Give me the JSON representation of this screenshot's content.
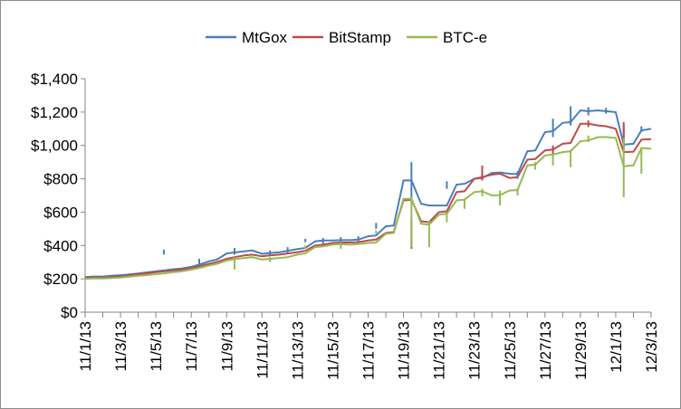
{
  "chart_data": {
    "type": "line",
    "title": "",
    "xlabel": "",
    "ylabel": "",
    "ylim": [
      0,
      1400
    ],
    "y_ticks": [
      "$0",
      "$200",
      "$400",
      "$600",
      "$800",
      "$1,000",
      "$1,200",
      "$1,400"
    ],
    "y_tick_values": [
      0,
      200,
      400,
      600,
      800,
      1000,
      1200,
      1400
    ],
    "x_ticks": [
      "11/1/13",
      "11/3/13",
      "11/5/13",
      "11/7/13",
      "11/9/13",
      "11/11/13",
      "11/13/13",
      "11/15/13",
      "11/17/13",
      "11/19/13",
      "11/21/13",
      "11/23/13",
      "11/25/13",
      "11/27/13",
      "11/29/13",
      "12/1/13",
      "12/3/13"
    ],
    "x_tick_days": [
      0,
      2,
      4,
      6,
      8,
      10,
      12,
      14,
      16,
      18,
      20,
      22,
      24,
      26,
      28,
      30,
      32
    ],
    "x_range": [
      0,
      32
    ],
    "legend_position": "top-center",
    "series": [
      {
        "name": "MtGox",
        "color": "#4a7ebb",
        "x": [
          0,
          0.45,
          1,
          1.45,
          2,
          2.45,
          3,
          3.45,
          4,
          4.45,
          5,
          5.45,
          6,
          6.45,
          7,
          7.45,
          8,
          8.45,
          9,
          9.45,
          10,
          10.45,
          11,
          11.45,
          12,
          12.45,
          13,
          13.45,
          14,
          14.45,
          15,
          15.45,
          16,
          16.45,
          17,
          17.45,
          18,
          18.45,
          19,
          19.45,
          20,
          20.45,
          21,
          21.45,
          22,
          22.45,
          23,
          23.45,
          24,
          24.45,
          25,
          25.45,
          26,
          26.45,
          27,
          27.45,
          28,
          28.45,
          29,
          29.45,
          30,
          30.45,
          31,
          31.45,
          32
        ],
        "values": [
          210,
          214,
          214,
          218,
          222,
          226,
          232,
          238,
          245,
          250,
          258,
          262,
          272,
          285,
          305,
          315,
          352,
          358,
          365,
          370,
          350,
          355,
          360,
          368,
          378,
          385,
          425,
          430,
          430,
          432,
          432,
          435,
          455,
          460,
          515,
          520,
          790,
          790,
          650,
          640,
          640,
          640,
          765,
          770,
          800,
          805,
          835,
          838,
          830,
          828,
          965,
          970,
          1080,
          1085,
          1135,
          1140,
          1210,
          1205,
          1210,
          1205,
          1200,
          1005,
          1010,
          1090,
          1100
        ]
      },
      {
        "name": "BitStamp",
        "color": "#be4b48",
        "x": [
          0,
          0.45,
          1,
          1.45,
          2,
          2.45,
          3,
          3.45,
          4,
          4.45,
          5,
          5.45,
          6,
          6.45,
          7,
          7.45,
          8,
          8.45,
          9,
          9.45,
          10,
          10.45,
          11,
          11.45,
          12,
          12.45,
          13,
          13.45,
          14,
          14.45,
          15,
          15.45,
          16,
          16.45,
          17,
          17.45,
          18,
          18.45,
          19,
          19.45,
          20,
          20.45,
          21,
          21.45,
          22,
          22.45,
          23,
          23.45,
          24,
          24.45,
          25,
          25.45,
          26,
          26.45,
          27,
          27.45,
          28,
          28.45,
          29,
          29.45,
          30,
          30.45,
          31,
          31.45,
          32
        ],
        "values": [
          205,
          208,
          208,
          210,
          215,
          220,
          228,
          232,
          240,
          245,
          250,
          255,
          265,
          275,
          290,
          300,
          320,
          330,
          340,
          345,
          335,
          340,
          345,
          352,
          360,
          368,
          400,
          405,
          415,
          418,
          418,
          420,
          430,
          435,
          475,
          480,
          670,
          675,
          545,
          540,
          600,
          605,
          720,
          725,
          800,
          810,
          825,
          830,
          805,
          810,
          915,
          918,
          970,
          975,
          1010,
          1015,
          1130,
          1130,
          1120,
          1115,
          1100,
          960,
          962,
          1035,
          1038
        ]
      },
      {
        "name": "BTC-e",
        "color": "#98b954",
        "x": [
          0,
          0.45,
          1,
          1.45,
          2,
          2.45,
          3,
          3.45,
          4,
          4.45,
          5,
          5.45,
          6,
          6.45,
          7,
          7.45,
          8,
          8.45,
          9,
          9.45,
          10,
          10.45,
          11,
          11.45,
          12,
          12.45,
          13,
          13.45,
          14,
          14.45,
          15,
          15.45,
          16,
          16.45,
          17,
          17.45,
          18,
          18.45,
          19,
          19.45,
          20,
          20.45,
          21,
          21.45,
          22,
          22.45,
          23,
          23.45,
          24,
          24.45,
          25,
          25.45,
          26,
          26.45,
          27,
          27.45,
          28,
          28.45,
          29,
          29.45,
          30,
          30.45,
          31,
          31.45,
          32
        ],
        "values": [
          200,
          202,
          202,
          204,
          208,
          212,
          218,
          222,
          228,
          232,
          240,
          245,
          255,
          265,
          280,
          290,
          310,
          318,
          325,
          330,
          315,
          320,
          325,
          330,
          345,
          352,
          390,
          395,
          405,
          408,
          405,
          408,
          415,
          418,
          470,
          475,
          680,
          680,
          530,
          525,
          585,
          590,
          670,
          675,
          720,
          725,
          700,
          702,
          730,
          732,
          880,
          885,
          940,
          945,
          960,
          965,
          1025,
          1030,
          1050,
          1050,
          1045,
          875,
          880,
          985,
          980
        ]
      }
    ],
    "spikes": [
      {
        "series": "MtGox",
        "x": 4.45,
        "low": 345,
        "high": 375
      },
      {
        "series": "MtGox",
        "x": 6.45,
        "low": 290,
        "high": 320
      },
      {
        "series": "MtGox",
        "x": 8.45,
        "low": 345,
        "high": 385
      },
      {
        "series": "MtGox",
        "x": 10.45,
        "low": 340,
        "high": 370
      },
      {
        "series": "MtGox",
        "x": 11.45,
        "low": 355,
        "high": 390
      },
      {
        "series": "MtGox",
        "x": 12.45,
        "low": 420,
        "high": 440
      },
      {
        "series": "MtGox",
        "x": 13.45,
        "low": 410,
        "high": 445
      },
      {
        "series": "MtGox",
        "x": 14.45,
        "low": 415,
        "high": 450
      },
      {
        "series": "MtGox",
        "x": 15.45,
        "low": 420,
        "high": 455
      },
      {
        "series": "MtGox",
        "x": 16.45,
        "low": 500,
        "high": 535
      },
      {
        "series": "MtGox",
        "x": 18.45,
        "low": 660,
        "high": 900
      },
      {
        "series": "MtGox",
        "x": 20.45,
        "low": 740,
        "high": 785
      },
      {
        "series": "MtGox",
        "x": 22.45,
        "low": 790,
        "high": 860
      },
      {
        "series": "MtGox",
        "x": 24.45,
        "low": 800,
        "high": 845
      },
      {
        "series": "MtGox",
        "x": 26.45,
        "low": 1050,
        "high": 1160
      },
      {
        "series": "MtGox",
        "x": 27.45,
        "low": 1120,
        "high": 1235
      },
      {
        "series": "MtGox",
        "x": 28.45,
        "low": 1180,
        "high": 1230
      },
      {
        "series": "MtGox",
        "x": 29.45,
        "low": 1190,
        "high": 1225
      },
      {
        "series": "MtGox",
        "x": 30.45,
        "low": 990,
        "high": 1120
      },
      {
        "series": "MtGox",
        "x": 31.45,
        "low": 1080,
        "high": 1115
      },
      {
        "series": "BitStamp",
        "x": 18.45,
        "low": 380,
        "high": 560
      },
      {
        "series": "BitStamp",
        "x": 22.45,
        "low": 790,
        "high": 880
      },
      {
        "series": "BitStamp",
        "x": 26.45,
        "low": 950,
        "high": 1000
      },
      {
        "series": "BitStamp",
        "x": 28.45,
        "low": 1110,
        "high": 1150
      },
      {
        "series": "BitStamp",
        "x": 30.45,
        "low": 950,
        "high": 1140
      },
      {
        "series": "BTC-e",
        "x": 8.45,
        "low": 255,
        "high": 330
      },
      {
        "series": "BTC-e",
        "x": 10.45,
        "low": 300,
        "high": 330
      },
      {
        "series": "BTC-e",
        "x": 12.45,
        "low": 380,
        "high": 400
      },
      {
        "series": "BTC-e",
        "x": 14.45,
        "low": 380,
        "high": 420
      },
      {
        "series": "BTC-e",
        "x": 16.45,
        "low": 470,
        "high": 490
      },
      {
        "series": "BTC-e",
        "x": 18.45,
        "low": 390,
        "high": 690
      },
      {
        "series": "BTC-e",
        "x": 19.45,
        "low": 390,
        "high": 545
      },
      {
        "series": "BTC-e",
        "x": 20.45,
        "low": 540,
        "high": 600
      },
      {
        "series": "BTC-e",
        "x": 21.45,
        "low": 620,
        "high": 680
      },
      {
        "series": "BTC-e",
        "x": 22.45,
        "low": 695,
        "high": 740
      },
      {
        "series": "BTC-e",
        "x": 23.45,
        "low": 640,
        "high": 730
      },
      {
        "series": "BTC-e",
        "x": 24.45,
        "low": 700,
        "high": 745
      },
      {
        "series": "BTC-e",
        "x": 25.45,
        "low": 855,
        "high": 900
      },
      {
        "series": "BTC-e",
        "x": 26.45,
        "low": 880,
        "high": 950
      },
      {
        "series": "BTC-e",
        "x": 27.45,
        "low": 870,
        "high": 975
      },
      {
        "series": "BTC-e",
        "x": 28.45,
        "low": 1020,
        "high": 1060
      },
      {
        "series": "BTC-e",
        "x": 30.45,
        "low": 690,
        "high": 1045
      },
      {
        "series": "BTC-e",
        "x": 31.45,
        "low": 830,
        "high": 990
      }
    ]
  }
}
